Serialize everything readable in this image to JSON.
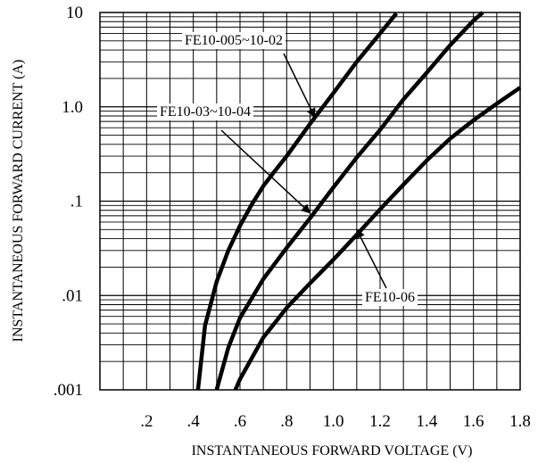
{
  "chart_data": {
    "type": "line",
    "xlabel": "INSTANTANEOUS FORWARD VOLTAGE (V)",
    "ylabel": "INSTANTANEOUS FORWARD CURRENT (A)",
    "x_scale": "linear",
    "y_scale": "log",
    "xlim": [
      0,
      1.8
    ],
    "ylim": [
      0.001,
      10
    ],
    "grid": true,
    "x_ticks": [
      {
        "value": 0.2,
        "label": ".2"
      },
      {
        "value": 0.4,
        "label": ".4"
      },
      {
        "value": 0.6,
        "label": ".6"
      },
      {
        "value": 0.8,
        "label": ".8"
      },
      {
        "value": 1.0,
        "label": "1.0"
      },
      {
        "value": 1.2,
        "label": "1.2"
      },
      {
        "value": 1.4,
        "label": "1.4"
      },
      {
        "value": 1.6,
        "label": "1.6"
      },
      {
        "value": 1.8,
        "label": "1.8"
      }
    ],
    "y_ticks": [
      {
        "value": 0.001,
        "label": ".001"
      },
      {
        "value": 0.01,
        "label": ".01"
      },
      {
        "value": 0.1,
        "label": ".1"
      },
      {
        "value": 1.0,
        "label": "1.0"
      },
      {
        "value": 10,
        "label": "10"
      }
    ],
    "series": [
      {
        "x": [
          0.42,
          0.45,
          0.5,
          0.55,
          0.6,
          0.65,
          0.7,
          0.75,
          0.8,
          0.9,
          1.0,
          1.1,
          1.2,
          1.27
        ],
        "y": [
          0.001,
          0.0048,
          0.014,
          0.03,
          0.055,
          0.092,
          0.145,
          0.21,
          0.3,
          0.66,
          1.4,
          3.0,
          6.0,
          9.8
        ]
      },
      {
        "x": [
          0.5,
          0.55,
          0.6,
          0.7,
          0.8,
          0.9,
          1.0,
          1.1,
          1.2,
          1.3,
          1.4,
          1.5,
          1.6,
          1.64
        ],
        "y": [
          0.001,
          0.0028,
          0.0058,
          0.015,
          0.032,
          0.066,
          0.14,
          0.29,
          0.57,
          1.2,
          2.3,
          4.5,
          8.2,
          10
        ]
      },
      {
        "x": [
          0.58,
          0.6,
          0.7,
          0.8,
          0.9,
          1.0,
          1.1,
          1.2,
          1.3,
          1.4,
          1.5,
          1.6,
          1.7,
          1.8
        ],
        "y": [
          0.001,
          0.0013,
          0.0036,
          0.0074,
          0.0135,
          0.024,
          0.044,
          0.082,
          0.15,
          0.27,
          0.46,
          0.72,
          1.08,
          1.6
        ]
      }
    ],
    "annotations": [
      {
        "text": "FE10-005~10-02",
        "arrow_to": {
          "x": 0.92,
          "y": 0.78
        }
      },
      {
        "text": "FE10-03~10-04",
        "arrow_to": {
          "x": 0.9,
          "y": 0.075
        }
      },
      {
        "text": "FE10-06",
        "arrow_to": {
          "x": 1.1,
          "y": 0.05
        }
      }
    ]
  }
}
